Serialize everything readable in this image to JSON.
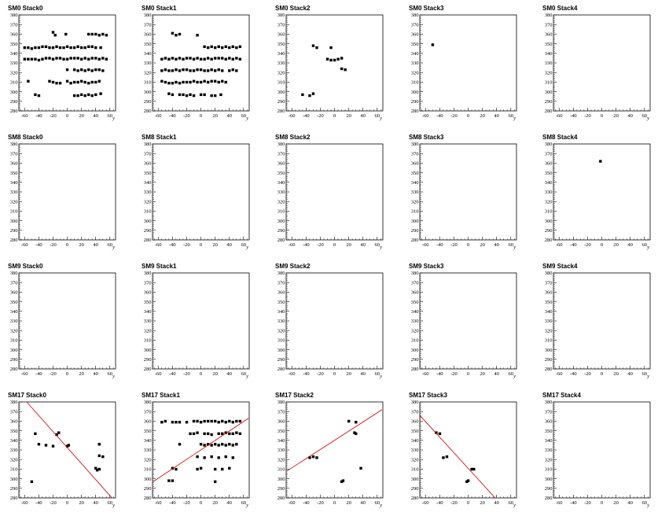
{
  "chart_data": {
    "type": "scatter",
    "layout_grid": {
      "rows": 4,
      "cols": 5
    },
    "xlabel": "y",
    "ylabel": "",
    "xlim": [
      -68,
      68
    ],
    "ylim": [
      280,
      380
    ],
    "xticks": [
      -60,
      -40,
      -20,
      0,
      20,
      40,
      60
    ],
    "yticks": [
      280,
      290,
      300,
      310,
      320,
      330,
      340,
      350,
      360,
      370,
      380
    ],
    "colors": {
      "points": "#000000",
      "fit_line": "#cc0000",
      "frame": "#000000"
    },
    "panels": [
      {
        "title": "SM0 Stack0",
        "points": [
          [
            -20,
            362
          ],
          [
            -17,
            359
          ],
          [
            -60,
            346
          ],
          [
            -55,
            346
          ],
          [
            -50,
            345
          ],
          [
            -45,
            346
          ],
          [
            -40,
            346
          ],
          [
            -35,
            347
          ],
          [
            -30,
            347
          ],
          [
            -25,
            346
          ],
          [
            -20,
            346
          ],
          [
            -15,
            347
          ],
          [
            -10,
            346
          ],
          [
            -5,
            346
          ],
          [
            0,
            347
          ],
          [
            5,
            346
          ],
          [
            10,
            346
          ],
          [
            15,
            347
          ],
          [
            20,
            346
          ],
          [
            25,
            346
          ],
          [
            30,
            347
          ],
          [
            35,
            347
          ],
          [
            40,
            346
          ],
          [
            47,
            346
          ],
          [
            -60,
            334
          ],
          [
            -55,
            334
          ],
          [
            -50,
            334
          ],
          [
            -45,
            334
          ],
          [
            -40,
            333
          ],
          [
            -35,
            334
          ],
          [
            -30,
            335
          ],
          [
            -25,
            335
          ],
          [
            -20,
            334
          ],
          [
            -15,
            335
          ],
          [
            -10,
            335
          ],
          [
            -5,
            334
          ],
          [
            0,
            334
          ],
          [
            5,
            335
          ],
          [
            10,
            335
          ],
          [
            15,
            335
          ],
          [
            20,
            334
          ],
          [
            25,
            335
          ],
          [
            30,
            334
          ],
          [
            35,
            335
          ],
          [
            40,
            335
          ],
          [
            45,
            334
          ],
          [
            50,
            335
          ],
          [
            55,
            334
          ],
          [
            0,
            323
          ],
          [
            10,
            323
          ],
          [
            15,
            322
          ],
          [
            20,
            323
          ],
          [
            25,
            322
          ],
          [
            30,
            323
          ],
          [
            35,
            322
          ],
          [
            40,
            323
          ],
          [
            45,
            323
          ],
          [
            50,
            322
          ],
          [
            -55,
            311
          ],
          [
            -25,
            311
          ],
          [
            -20,
            310
          ],
          [
            -15,
            309
          ],
          [
            -10,
            309
          ],
          [
            0,
            311
          ],
          [
            5,
            309
          ],
          [
            10,
            310
          ],
          [
            15,
            310
          ],
          [
            20,
            311
          ],
          [
            25,
            310
          ],
          [
            30,
            309
          ],
          [
            35,
            310
          ],
          [
            40,
            310
          ],
          [
            45,
            311
          ],
          [
            -45,
            297
          ],
          [
            -40,
            296
          ],
          [
            10,
            296
          ],
          [
            15,
            296
          ],
          [
            20,
            297
          ],
          [
            25,
            296
          ],
          [
            30,
            297
          ],
          [
            35,
            296
          ],
          [
            40,
            297
          ],
          [
            47,
            298
          ],
          [
            -2,
            360
          ],
          [
            30,
            360
          ],
          [
            35,
            360
          ],
          [
            40,
            360
          ],
          [
            45,
            359
          ],
          [
            50,
            360
          ],
          [
            55,
            359
          ]
        ],
        "line": null
      },
      {
        "title": "SM0 Stack1",
        "points": [
          [
            -40,
            361
          ],
          [
            -35,
            359
          ],
          [
            -30,
            360
          ],
          [
            -5,
            359
          ],
          [
            -55,
            334
          ],
          [
            -50,
            335
          ],
          [
            -45,
            334
          ],
          [
            -40,
            335
          ],
          [
            -35,
            334
          ],
          [
            -30,
            335
          ],
          [
            -25,
            334
          ],
          [
            -20,
            335
          ],
          [
            -15,
            335
          ],
          [
            -10,
            334
          ],
          [
            -5,
            335
          ],
          [
            0,
            334
          ],
          [
            5,
            334
          ],
          [
            10,
            335
          ],
          [
            15,
            334
          ],
          [
            20,
            335
          ],
          [
            25,
            335
          ],
          [
            30,
            335
          ],
          [
            35,
            334
          ],
          [
            40,
            335
          ],
          [
            45,
            334
          ],
          [
            50,
            335
          ],
          [
            55,
            334
          ],
          [
            5,
            347
          ],
          [
            10,
            346
          ],
          [
            15,
            347
          ],
          [
            20,
            346
          ],
          [
            25,
            347
          ],
          [
            30,
            346
          ],
          [
            35,
            347
          ],
          [
            40,
            346
          ],
          [
            45,
            347
          ],
          [
            50,
            346
          ],
          [
            55,
            347
          ],
          [
            -55,
            322
          ],
          [
            -50,
            323
          ],
          [
            -45,
            322
          ],
          [
            -40,
            322
          ],
          [
            -35,
            323
          ],
          [
            -30,
            322
          ],
          [
            -25,
            323
          ],
          [
            -20,
            323
          ],
          [
            -15,
            322
          ],
          [
            -10,
            322
          ],
          [
            -5,
            323
          ],
          [
            0,
            323
          ],
          [
            5,
            322
          ],
          [
            10,
            322
          ],
          [
            15,
            323
          ],
          [
            20,
            322
          ],
          [
            25,
            323
          ],
          [
            30,
            322
          ],
          [
            40,
            322
          ],
          [
            45,
            323
          ],
          [
            50,
            322
          ],
          [
            -55,
            311
          ],
          [
            -50,
            310
          ],
          [
            -45,
            309
          ],
          [
            -40,
            309
          ],
          [
            -35,
            310
          ],
          [
            -30,
            309
          ],
          [
            -25,
            310
          ],
          [
            -20,
            310
          ],
          [
            -15,
            310
          ],
          [
            -10,
            311
          ],
          [
            -5,
            310
          ],
          [
            0,
            310
          ],
          [
            5,
            311
          ],
          [
            10,
            310
          ],
          [
            15,
            311
          ],
          [
            20,
            311
          ],
          [
            25,
            310
          ],
          [
            30,
            311
          ],
          [
            35,
            310
          ],
          [
            -40,
            297
          ],
          [
            -45,
            298
          ],
          [
            -30,
            297
          ],
          [
            -25,
            297
          ],
          [
            -20,
            296
          ],
          [
            -15,
            297
          ],
          [
            -10,
            296
          ],
          [
            0,
            297
          ],
          [
            5,
            297
          ],
          [
            15,
            296
          ],
          [
            20,
            296
          ],
          [
            28,
            297
          ]
        ],
        "line": null
      },
      {
        "title": "SM0 Stack2",
        "points": [
          [
            -30,
            348
          ],
          [
            -25,
            346
          ],
          [
            -10,
            334
          ],
          [
            -5,
            333
          ],
          [
            0,
            333
          ],
          [
            5,
            334
          ],
          [
            10,
            335
          ],
          [
            -5,
            346
          ],
          [
            10,
            324
          ],
          [
            15,
            323
          ],
          [
            -35,
            296
          ],
          [
            -30,
            298
          ],
          [
            -45,
            297
          ]
        ],
        "line": null
      },
      {
        "title": "SM0 Stack3",
        "points": [
          [
            -50,
            349
          ]
        ],
        "line": null
      },
      {
        "title": "SM0 Stack4",
        "points": [],
        "line": null
      },
      {
        "title": "SM8 Stack0",
        "points": [],
        "line": null
      },
      {
        "title": "SM8 Stack1",
        "points": [],
        "line": null
      },
      {
        "title": "SM8 Stack2",
        "points": [],
        "line": null
      },
      {
        "title": "SM8 Stack3",
        "points": [],
        "line": null
      },
      {
        "title": "SM8 Stack4",
        "points": [
          [
            -2,
            362
          ]
        ],
        "line": null
      },
      {
        "title": "SM9 Stack0",
        "points": [],
        "line": null
      },
      {
        "title": "SM9 Stack1",
        "points": [],
        "line": null
      },
      {
        "title": "SM9 Stack2",
        "points": [],
        "line": null
      },
      {
        "title": "SM9 Stack3",
        "points": [],
        "line": null
      },
      {
        "title": "SM9 Stack4",
        "points": [],
        "line": null
      },
      {
        "title": "SM17 Stack0",
        "points": [
          [
            -45,
            347
          ],
          [
            -15,
            346
          ],
          [
            -12,
            348
          ],
          [
            -40,
            336
          ],
          [
            -30,
            335
          ],
          [
            -20,
            334
          ],
          [
            0,
            334
          ],
          [
            2,
            335
          ],
          [
            45,
            336
          ],
          [
            45,
            324
          ],
          [
            50,
            323
          ],
          [
            40,
            311
          ],
          [
            42,
            309
          ],
          [
            45,
            310
          ],
          [
            -50,
            297
          ]
        ],
        "line": [
          [
            -57,
            380
          ],
          [
            63,
            280
          ]
        ]
      },
      {
        "title": "SM17 Stack1",
        "points": [
          [
            -55,
            359
          ],
          [
            -50,
            360
          ],
          [
            -40,
            359
          ],
          [
            -35,
            359
          ],
          [
            -30,
            359
          ],
          [
            -20,
            359
          ],
          [
            -10,
            360
          ],
          [
            -5,
            360
          ],
          [
            0,
            359
          ],
          [
            5,
            360
          ],
          [
            10,
            360
          ],
          [
            15,
            360
          ],
          [
            20,
            360
          ],
          [
            25,
            359
          ],
          [
            30,
            360
          ],
          [
            35,
            359
          ],
          [
            40,
            360
          ],
          [
            45,
            359
          ],
          [
            50,
            360
          ],
          [
            55,
            360
          ],
          [
            -15,
            347
          ],
          [
            -10,
            347
          ],
          [
            -5,
            348
          ],
          [
            5,
            347
          ],
          [
            10,
            347
          ],
          [
            15,
            346
          ],
          [
            25,
            347
          ],
          [
            30,
            347
          ],
          [
            35,
            348
          ],
          [
            40,
            347
          ],
          [
            45,
            347
          ],
          [
            50,
            348
          ],
          [
            55,
            347
          ],
          [
            0,
            336
          ],
          [
            5,
            335
          ],
          [
            10,
            336
          ],
          [
            15,
            335
          ],
          [
            20,
            336
          ],
          [
            25,
            335
          ],
          [
            30,
            336
          ],
          [
            35,
            335
          ],
          [
            40,
            336
          ],
          [
            45,
            335
          ],
          [
            50,
            336
          ],
          [
            -30,
            336
          ],
          [
            -5,
            323
          ],
          [
            5,
            322
          ],
          [
            15,
            323
          ],
          [
            25,
            322
          ],
          [
            35,
            323
          ],
          [
            45,
            322
          ],
          [
            -40,
            311
          ],
          [
            -35,
            310
          ],
          [
            -5,
            310
          ],
          [
            0,
            311
          ],
          [
            20,
            310
          ],
          [
            30,
            310
          ],
          [
            40,
            311
          ],
          [
            -45,
            298
          ],
          [
            -40,
            298
          ],
          [
            20,
            297
          ]
        ],
        "line": [
          [
            -67,
            297
          ],
          [
            67,
            363
          ]
        ]
      },
      {
        "title": "SM17 Stack2",
        "points": [
          [
            -35,
            322
          ],
          [
            -30,
            323
          ],
          [
            -25,
            322
          ],
          [
            20,
            360
          ],
          [
            30,
            359
          ],
          [
            28,
            348
          ],
          [
            30,
            347
          ],
          [
            10,
            297
          ],
          [
            12,
            298
          ],
          [
            37,
            311
          ]
        ],
        "line": [
          [
            -67,
            308
          ],
          [
            67,
            372
          ]
        ]
      },
      {
        "title": "SM17 Stack3",
        "points": [
          [
            -45,
            348
          ],
          [
            -40,
            347
          ],
          [
            -30,
            323
          ],
          [
            -35,
            322
          ],
          [
            5,
            310
          ],
          [
            8,
            310
          ],
          [
            0,
            298
          ],
          [
            -2,
            297
          ]
        ],
        "line": [
          [
            -68,
            366
          ],
          [
            38,
            280
          ]
        ]
      },
      {
        "title": "SM17 Stack4",
        "points": [],
        "line": null
      }
    ]
  }
}
